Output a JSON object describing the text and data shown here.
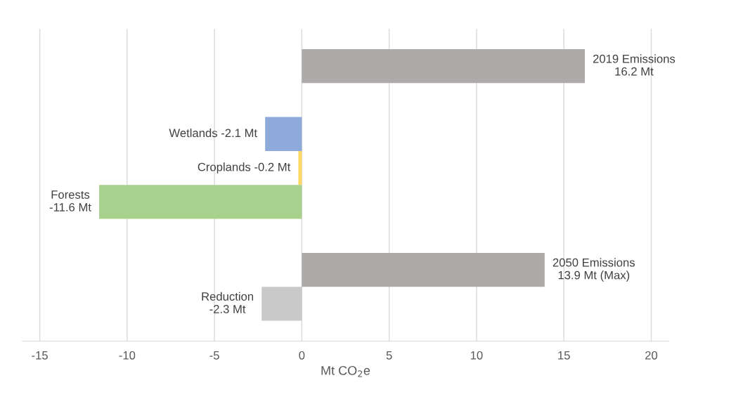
{
  "chart_data": {
    "type": "bar",
    "orientation": "horizontal",
    "categories": [
      null,
      null,
      null,
      null,
      null,
      null,
      null,
      null
    ],
    "values": [
      16.2,
      null,
      -2.1,
      -0.2,
      -11.6,
      null,
      13.9,
      -2.3
    ],
    "colors": [
      "#aeaaaa",
      "#aeaaaa",
      "#8eaadb",
      "#ffd966",
      "#a9d18e",
      "#aeaaaa",
      "#aeaaaa",
      "#c9c9c9"
    ],
    "value_labels": [
      "2019 Emissions\n16.2 Mt",
      null,
      "Wetlands -2.1 Mt",
      "Croplands -0.2 Mt",
      "Forests\n-11.6 Mt",
      null,
      "2050 Emissions\n13.9 Mt (Max)",
      "Reduction\n-2.3 Mt"
    ],
    "xlim": [
      -16,
      21
    ],
    "xticks": [
      -15,
      -10,
      -5,
      0,
      5,
      10,
      15,
      20
    ],
    "xlabel": "Mt CO$_{2}$e",
    "grid": "x",
    "tick_labels": "x"
  }
}
